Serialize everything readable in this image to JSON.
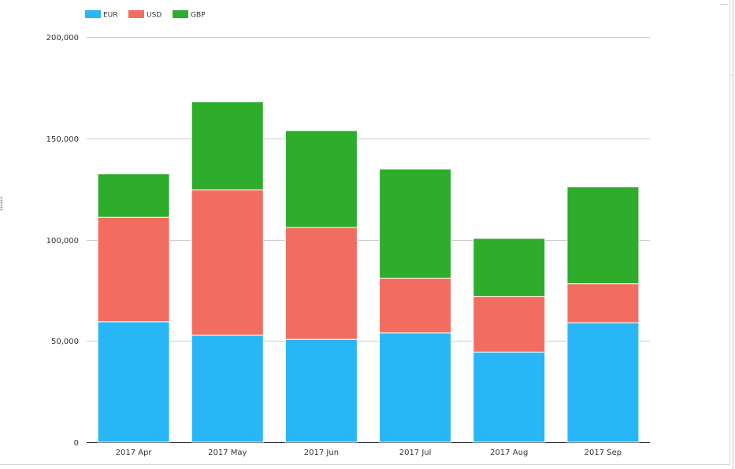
{
  "chart_data": {
    "type": "bar",
    "stacked": true,
    "categories": [
      "2017 Apr",
      "2017 May",
      "2017 Jun",
      "2017 Jul",
      "2017 Aug",
      "2017 Sep"
    ],
    "series": [
      {
        "name": "EUR",
        "color": "#29b6f6",
        "values": [
          59500,
          52800,
          50800,
          54000,
          44500,
          59000
        ]
      },
      {
        "name": "USD",
        "color": "#f26d60",
        "values": [
          51500,
          71800,
          55200,
          27000,
          27500,
          19200
        ]
      },
      {
        "name": "GBP",
        "color": "#2eac2b",
        "values": [
          21500,
          43400,
          47800,
          53800,
          28600,
          47800
        ]
      }
    ],
    "ylim": [
      0,
      200000
    ],
    "yticks": [
      0,
      50000,
      100000,
      150000,
      200000
    ],
    "ytick_labels": [
      "0",
      "50,000",
      "100,000",
      "150,000",
      "200,000"
    ],
    "grid": true,
    "legend_position": "top-left",
    "title": "",
    "xlabel": "",
    "ylabel": ""
  }
}
